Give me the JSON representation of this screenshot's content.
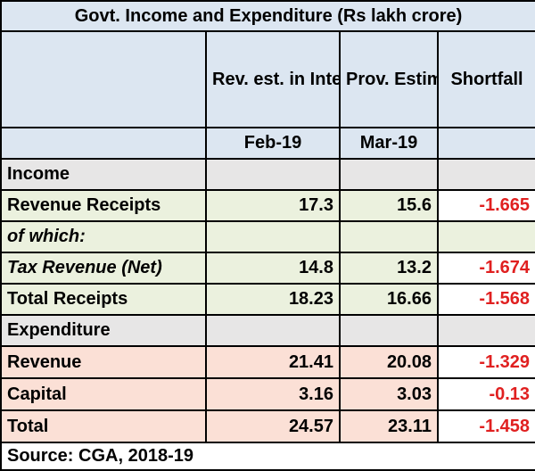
{
  "table": {
    "title": "Govt. Income and Expenditure (Rs lakh crore)",
    "headers": {
      "col2": "Rev. est. in Interim Budget",
      "col3": "Prov. Estimate",
      "col4": "Shortfall",
      "col2_date": "Feb-19",
      "col3_date": "Mar-19"
    },
    "sections": {
      "income": "Income",
      "expenditure": "Expenditure"
    },
    "rows": {
      "revenue_receipts": {
        "label": "Revenue Receipts",
        "rev_est": "17.3",
        "prov_est": "15.6",
        "shortfall": "-1.665"
      },
      "of_which": {
        "label": "of which:"
      },
      "tax_revenue": {
        "label": "Tax Revenue (Net)",
        "rev_est": "14.8",
        "prov_est": "13.2",
        "shortfall": "-1.674"
      },
      "total_receipts": {
        "label": "Total Receipts",
        "rev_est": "18.23",
        "prov_est": "16.66",
        "shortfall": "-1.568"
      },
      "revenue": {
        "label": "Revenue",
        "rev_est": "21.41",
        "prov_est": "20.08",
        "shortfall": "-1.329"
      },
      "capital": {
        "label": "Capital",
        "rev_est": "3.16",
        "prov_est": "3.03",
        "shortfall": "-0.13"
      },
      "total": {
        "label": "Total",
        "rev_est": "24.57",
        "prov_est": "23.11",
        "shortfall": "-1.458"
      }
    },
    "source": "Source: CGA, 2018-19"
  },
  "colors": {
    "header_bg": "#dce6f1",
    "section_bg": "#e7e6e6",
    "income_bg": "#ebf1de",
    "expenditure_bg": "#fbe0d6",
    "negative_text": "#e02020"
  }
}
